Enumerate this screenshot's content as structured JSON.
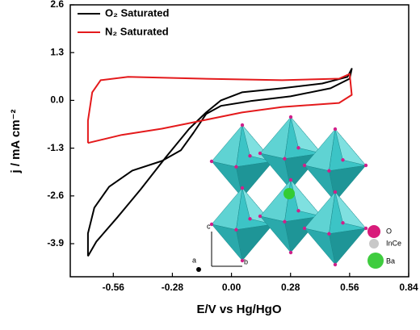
{
  "chart_data": {
    "type": "line",
    "x_label": "E/V vs Hg/HgO",
    "y_label": "j / mA cm⁻²",
    "xlim": [
      -0.764,
      0.84
    ],
    "ylim": [
      -4.8,
      2.6
    ],
    "xticks": [
      -0.56,
      -0.28,
      {
        "value": 0,
        "label": "0.00"
      },
      0.28,
      0.56,
      0.84
    ],
    "yticks": [
      2.6,
      1.3,
      {
        "value": 0,
        "label": "0.0"
      },
      -1.3,
      -2.6,
      -3.9
    ],
    "series": [
      {
        "name": "O₂ Saturated",
        "color": "#000000",
        "x": [
          -0.68,
          -0.68,
          -0.65,
          -0.58,
          -0.47,
          -0.33,
          -0.24,
          -0.18,
          -0.12,
          -0.05,
          0.09,
          0.28,
          0.47,
          0.56,
          0.57,
          0.55,
          0.43,
          0.24,
          0.05,
          -0.05,
          -0.12,
          -0.2,
          -0.31,
          -0.43,
          -0.54,
          -0.64,
          -0.68
        ],
        "values": [
          -4.24,
          -3.62,
          -2.92,
          -2.35,
          -1.91,
          -1.65,
          -1.36,
          -0.88,
          -0.37,
          -0.15,
          -0.02,
          0.11,
          0.33,
          0.59,
          0.86,
          0.64,
          0.46,
          0.33,
          0.22,
          0.0,
          -0.33,
          -0.77,
          -1.54,
          -2.42,
          -3.18,
          -3.84,
          -4.24
        ]
      },
      {
        "name": "N₂ Saturated",
        "color": "#e41a1c",
        "x": [
          -0.68,
          -0.68,
          -0.66,
          -0.62,
          -0.49,
          -0.14,
          0.24,
          0.51,
          0.56,
          0.57,
          0.51,
          0.24,
          0.05,
          -0.14,
          -0.33,
          -0.52,
          -0.68
        ],
        "values": [
          -1.16,
          -0.55,
          0.22,
          0.55,
          0.64,
          0.59,
          0.55,
          0.59,
          0.72,
          0.15,
          -0.07,
          -0.18,
          -0.33,
          -0.55,
          -0.77,
          -0.94,
          -1.16
        ]
      }
    ],
    "inset_legend": [
      "O",
      "InCe",
      "Ba"
    ],
    "inset_axes": [
      "a",
      "b",
      "c"
    ]
  }
}
